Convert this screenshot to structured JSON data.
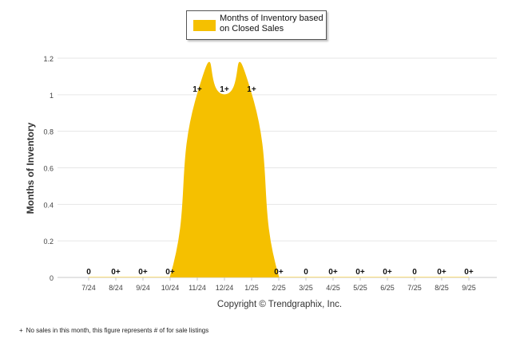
{
  "legend": {
    "label": "Months of Inventory based on Closed Sales"
  },
  "copyright": "Copyright © Trendgraphix, Inc.",
  "footnote": {
    "marker": "+",
    "text": "No sales in this month, this figure represents # of for sale listings"
  },
  "chart_data": {
    "type": "area",
    "ylabel": "Months of Inventory",
    "xlabel": "",
    "ylim": [
      0,
      1.2
    ],
    "yticks": [
      "0",
      "0.2",
      "0.4",
      "0.6",
      "0.8",
      "1",
      "1.2"
    ],
    "grid": true,
    "legend_position": "top-center",
    "categories": [
      "7/24",
      "8/24",
      "9/24",
      "10/24",
      "11/24",
      "12/24",
      "1/25",
      "2/25",
      "3/25",
      "4/25",
      "5/25",
      "6/25",
      "7/25",
      "8/25",
      "9/25"
    ],
    "series": [
      {
        "name": "Months of Inventory based on Closed Sales",
        "color": "#F5C000",
        "values": [
          0,
          0,
          0,
          0,
          1,
          1,
          1,
          0,
          0,
          0,
          0,
          0,
          0,
          0,
          0
        ]
      }
    ],
    "data_labels": [
      "0",
      "0+",
      "0+",
      "0+",
      "1+",
      "1+",
      "1+",
      "0+",
      "0",
      "0+",
      "0+",
      "0+",
      "0",
      "0+",
      "0+"
    ]
  }
}
